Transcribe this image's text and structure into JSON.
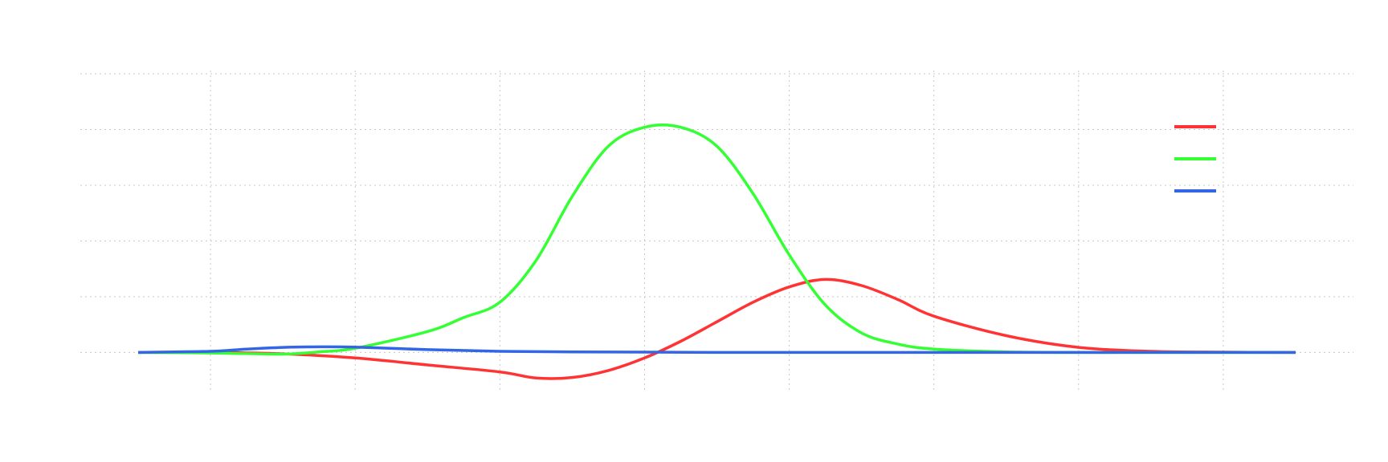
{
  "chart_data": {
    "type": "line",
    "title": "",
    "xlabel": "",
    "ylabel": "",
    "xlim": [
      -4.4,
      4.4
    ],
    "ylim": [
      -0.14,
      1.0
    ],
    "x_gridlines": [
      -3.5,
      -2.5,
      -1.5,
      -0.5,
      0.5,
      1.5,
      2.5,
      3.5
    ],
    "y_gridlines": [
      0.0,
      0.2,
      0.4,
      0.6,
      0.8,
      1.0
    ],
    "grid": true,
    "legend_position": "top-right",
    "series": [
      {
        "color": "#ff3333",
        "x": [
          -4.0,
          -3.5,
          -3.0,
          -2.5,
          -2.0,
          -1.5,
          -1.25,
          -1.0,
          -0.75,
          -0.5,
          -0.25,
          0.0,
          0.25,
          0.5,
          0.75,
          1.0,
          1.25,
          1.5,
          2.0,
          2.5,
          3.0,
          3.5,
          4.0
        ],
        "y": [
          0.0,
          0.0,
          -0.005,
          -0.02,
          -0.045,
          -0.07,
          -0.092,
          -0.09,
          -0.065,
          -0.02,
          0.04,
          0.11,
          0.18,
          0.235,
          0.262,
          0.24,
          0.19,
          0.13,
          0.06,
          0.018,
          0.004,
          0.001,
          0.0
        ]
      },
      {
        "color": "#33ff33",
        "x": [
          -4.0,
          -3.5,
          -3.0,
          -2.75,
          -2.5,
          -2.0,
          -1.75,
          -1.5,
          -1.25,
          -1.0,
          -0.75,
          -0.5,
          -0.25,
          0.0,
          0.25,
          0.5,
          0.75,
          1.0,
          1.25,
          1.5,
          2.0,
          2.5,
          3.0,
          3.5,
          4.0
        ],
        "y": [
          0.0,
          -0.002,
          -0.006,
          0.002,
          0.015,
          0.075,
          0.125,
          0.18,
          0.33,
          0.56,
          0.74,
          0.808,
          0.808,
          0.74,
          0.57,
          0.35,
          0.17,
          0.07,
          0.03,
          0.012,
          0.002,
          0.0,
          0.0,
          0.0,
          0.0
        ]
      },
      {
        "color": "#3366e6",
        "x": [
          -4.0,
          -3.5,
          -3.25,
          -3.0,
          -2.75,
          -2.5,
          -2.0,
          -1.5,
          -1.0,
          -0.5,
          0.0,
          1.0,
          2.0,
          3.0,
          4.0
        ],
        "y": [
          0.0,
          0.004,
          0.012,
          0.018,
          0.02,
          0.019,
          0.01,
          0.004,
          0.002,
          0.001,
          0.0,
          0.0,
          0.0,
          0.0,
          0.0
        ]
      }
    ]
  }
}
